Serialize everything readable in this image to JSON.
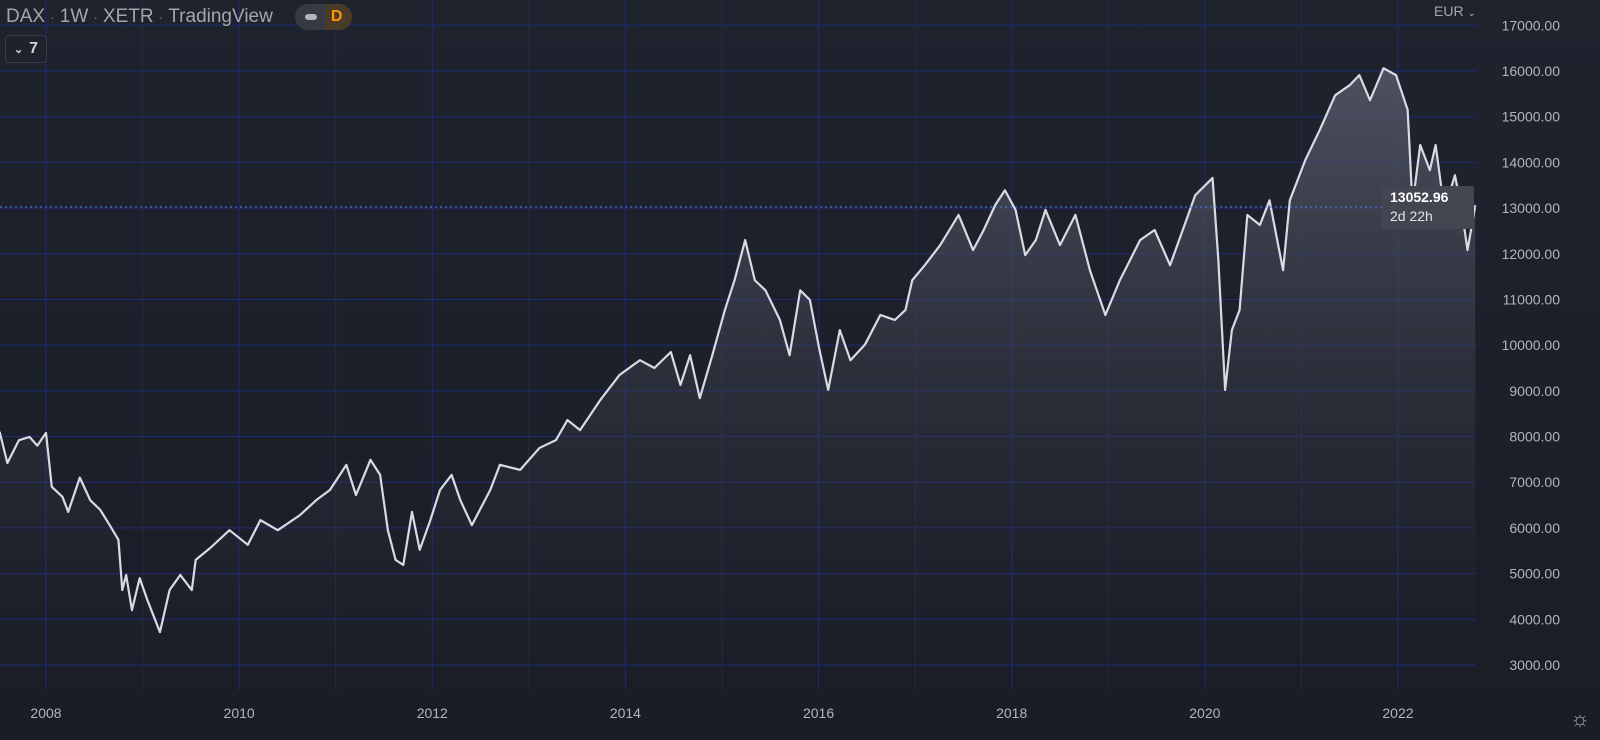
{
  "header": {
    "symbol": "DAX",
    "interval": "1W",
    "exchange": "XETR",
    "source": "TradingView",
    "session_badge": "D",
    "collapse_count": "7"
  },
  "price_axis": {
    "currency": "EUR",
    "last_price": "13052.96",
    "countdown": "2d 22h"
  },
  "colors": {
    "background": "#1e222d",
    "grid": "#1c2b7a",
    "line": "#d9dbe3",
    "badge": "#ff9800"
  },
  "chart_data": {
    "type": "area",
    "title": "DAX · 1W · XETR · TradingView",
    "xlabel": "",
    "ylabel": "EUR",
    "xlim": [
      2007.52,
      2022.8
    ],
    "ylim": [
      2500,
      17300
    ],
    "y_ticks": [
      3000,
      4000,
      5000,
      6000,
      7000,
      8000,
      9000,
      10000,
      11000,
      12000,
      13000,
      14000,
      15000,
      16000,
      17000
    ],
    "y_tick_labels": [
      "3000.00",
      "4000.00",
      "5000.00",
      "6000.00",
      "7000.00",
      "8000.00",
      "9000.00",
      "10000.00",
      "11000.00",
      "12000.00",
      "13000.00",
      "14000.00",
      "15000.00",
      "16000.00",
      "17000.00"
    ],
    "x_ticks": [
      2008,
      2009,
      2010,
      2011,
      2012,
      2013,
      2014,
      2015,
      2016,
      2017,
      2018,
      2019,
      2020,
      2021,
      2022
    ],
    "x_tick_labels": [
      "2008",
      "2010",
      "2012",
      "2014",
      "2016",
      "2018",
      "2020",
      "2022"
    ],
    "grid": true,
    "x": [
      2007.52,
      2007.6,
      2007.72,
      2007.83,
      2007.91,
      2008.0,
      2008.06,
      2008.17,
      2008.23,
      2008.35,
      2008.46,
      2008.56,
      2008.66,
      2008.75,
      2008.79,
      2008.83,
      2008.89,
      2008.97,
      2009.05,
      2009.18,
      2009.28,
      2009.39,
      2009.51,
      2009.55,
      2009.7,
      2009.9,
      2010.09,
      2010.22,
      2010.4,
      2010.63,
      2010.8,
      2010.94,
      2011.11,
      2011.21,
      2011.36,
      2011.46,
      2011.54,
      2011.62,
      2011.7,
      2011.79,
      2011.87,
      2011.98,
      2012.08,
      2012.2,
      2012.29,
      2012.41,
      2012.6,
      2012.7,
      2012.91,
      2013.11,
      2013.28,
      2013.4,
      2013.53,
      2013.74,
      2013.94,
      2014.15,
      2014.3,
      2014.47,
      2014.57,
      2014.67,
      2014.77,
      2014.9,
      2015.03,
      2015.13,
      2015.24,
      2015.34,
      2015.45,
      2015.6,
      2015.7,
      2015.81,
      2015.91,
      2016.01,
      2016.1,
      2016.22,
      2016.33,
      2016.48,
      2016.64,
      2016.79,
      2016.9,
      2016.97,
      2017.1,
      2017.26,
      2017.45,
      2017.6,
      2017.71,
      2017.83,
      2017.93,
      2018.04,
      2018.14,
      2018.25,
      2018.35,
      2018.5,
      2018.66,
      2018.81,
      2018.97,
      2019.12,
      2019.33,
      2019.48,
      2019.64,
      2019.79,
      2019.9,
      2020.08,
      2020.14,
      2020.21,
      2020.28,
      2020.36,
      2020.44,
      2020.57,
      2020.67,
      2020.81,
      2020.88,
      2021.04,
      2021.19,
      2021.35,
      2021.5,
      2021.6,
      2021.71,
      2021.85,
      2021.98,
      2022.1,
      2022.15,
      2022.23,
      2022.33,
      2022.39,
      2022.48,
      2022.59,
      2022.66,
      2022.72,
      2022.8
    ],
    "values": [
      8100,
      7420,
      7920,
      7990,
      7800,
      8080,
      6900,
      6680,
      6350,
      7100,
      6600,
      6400,
      6060,
      5740,
      4640,
      4970,
      4200,
      4900,
      4420,
      3720,
      4640,
      4970,
      4640,
      5300,
      5560,
      5950,
      5630,
      6170,
      5950,
      6280,
      6610,
      6830,
      7380,
      6720,
      7490,
      7160,
      5950,
      5300,
      5190,
      6350,
      5520,
      6170,
      6830,
      7160,
      6610,
      6060,
      6830,
      7380,
      7270,
      7750,
      7920,
      8360,
      8140,
      8800,
      9350,
      9670,
      9500,
      9850,
      9130,
      9780,
      8840,
      9780,
      10770,
      11420,
      12300,
      11420,
      11200,
      10550,
      9780,
      11200,
      10990,
      9890,
      9020,
      10330,
      9670,
      10010,
      10660,
      10550,
      10770,
      11420,
      11750,
      12190,
      12850,
      12080,
      12520,
      13070,
      13390,
      12960,
      11970,
      12300,
      12960,
      12190,
      12850,
      11640,
      10660,
      11420,
      12300,
      12520,
      11750,
      12630,
      13280,
      13660,
      11860,
      9020,
      10330,
      10770,
      12850,
      12630,
      13170,
      11640,
      13170,
      14050,
      14710,
      15470,
      15690,
      15910,
      15360,
      16060,
      15910,
      15150,
      13070,
      14380,
      13830,
      14380,
      12960,
      13720,
      12960,
      12080,
      13052.96
    ]
  }
}
